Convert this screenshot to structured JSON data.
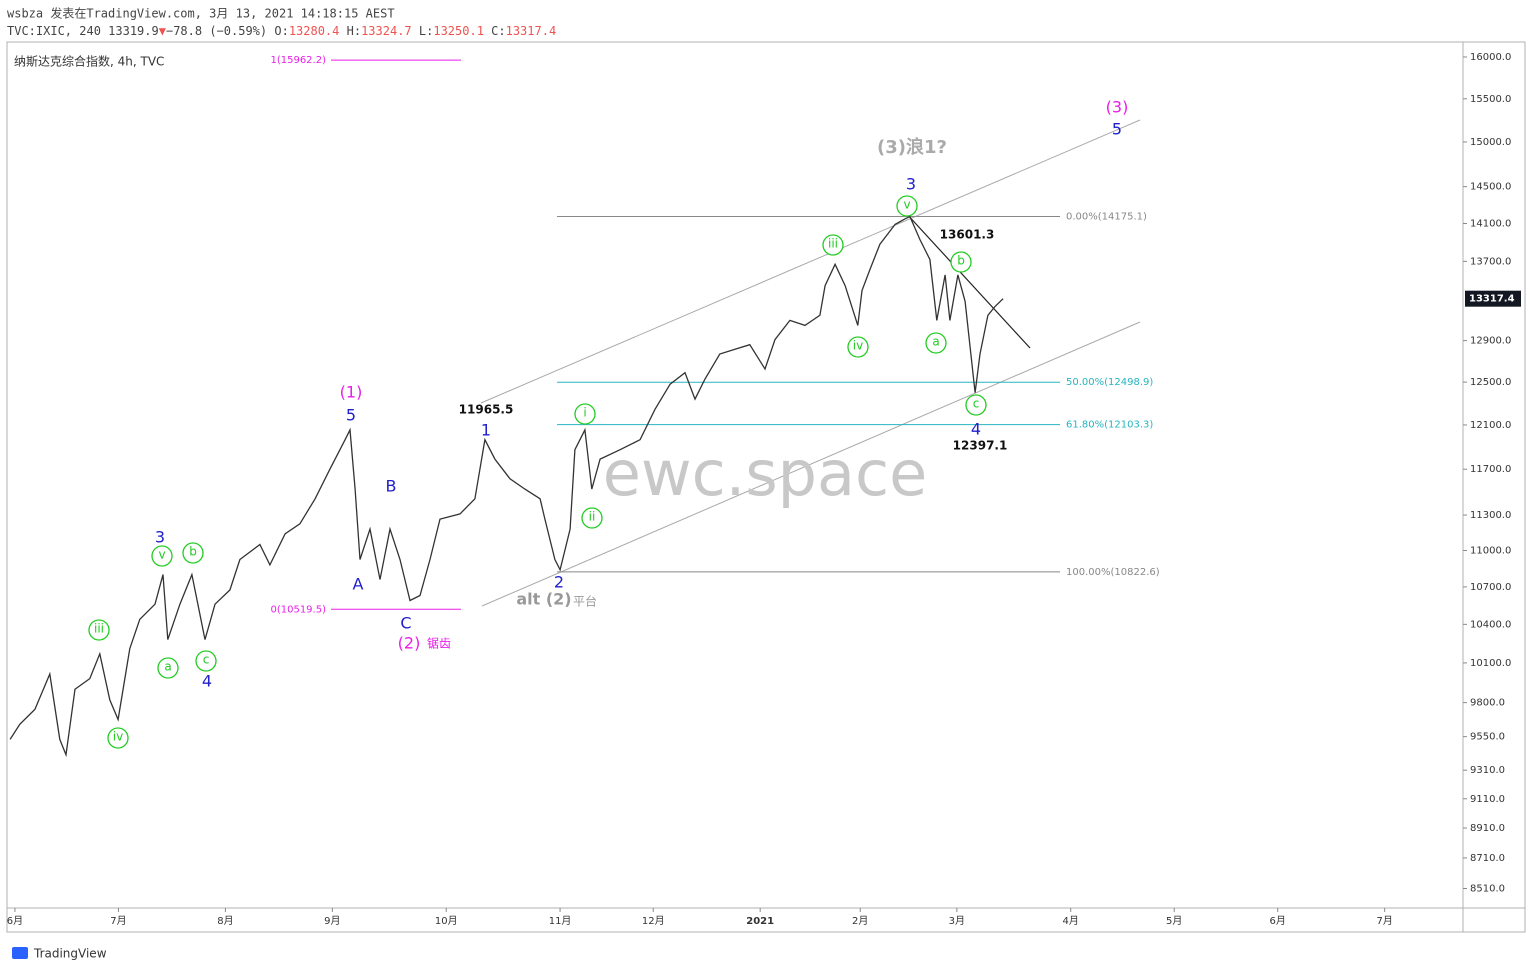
{
  "header": {
    "line1": "wsbza 发表在TradingView.com, 3月 13, 2021 14:18:15 AEST",
    "symbol": "TVC:IXIC, 240",
    "price": 13319.9,
    "arrow": "▼",
    "change": "−78.8 (−0.59%)",
    "ohlc": [
      {
        "key": "O:",
        "value": 13280.4
      },
      {
        "key": "H:",
        "value": 13324.7
      },
      {
        "key": "L:",
        "value": 13250.1
      },
      {
        "key": "C:",
        "value": 13317.4
      }
    ],
    "legend": "纳斯达克综合指数, 4h, TVC"
  },
  "chart_data": {
    "type": "line",
    "log_scale": true,
    "color": "#333333",
    "x": [
      -1.4,
      1.4,
      5.8,
      10.1,
      13.0,
      14.8,
      17.4,
      21.7,
      24.6,
      27.5,
      29.9,
      33.3,
      36.2,
      40.6,
      42.9,
      44.3,
      47.8,
      51.3,
      55.1,
      58.0,
      62.3,
      65.2,
      71.0,
      73.9,
      78.3,
      82.6,
      87.0,
      91.3,
      95.7,
      97.1,
      98.6,
      100.0,
      102.9,
      105.8,
      108.7,
      111.6,
      114.5,
      117.4,
      120.3,
      123.2,
      129.0,
      133.3,
      136.2,
      139.1,
      143.5,
      147.8,
      152.2,
      153.6,
      156.5,
      158.0,
      160.9,
      162.3,
      165.2,
      167.2,
      169.6,
      175.4,
      181.2,
      185.5,
      189.9,
      194.2,
      197.1,
      200.0,
      204.3,
      208.7,
      213.0,
      217.4,
      220.3,
      224.6,
      229.0,
      233.3,
      234.8,
      237.7,
      240.6,
      244.3,
      245.5,
      247.8,
      250.7,
      255.1,
      258.0,
      259.4,
      262.3,
      265.2,
      267.2,
      269.6,
      271.0,
      273.3,
      275.4,
      278.3,
      279.7,
      282.0,
      284.1,
      286.4
    ],
    "values": [
      9530,
      9640,
      9750,
      10015,
      9530,
      9420,
      9900,
      9980,
      10170,
      9820,
      9675,
      10210,
      10440,
      10560,
      10800,
      10280,
      10560,
      10800,
      10280,
      10560,
      10675,
      10925,
      11050,
      10880,
      11140,
      11225,
      11440,
      11700,
      11965,
      12055,
      11525,
      10925,
      11180,
      10760,
      11180,
      10925,
      10590,
      10630,
      10925,
      11265,
      11310,
      11440,
      11965,
      11790,
      11615,
      11525,
      11440,
      11265,
      10925,
      10840,
      11180,
      11875,
      12055,
      11525,
      11790,
      11875,
      11965,
      12245,
      12480,
      12590,
      12340,
      12530,
      12770,
      12815,
      12860,
      12625,
      12910,
      13100,
      13050,
      13150,
      13450,
      13670,
      13450,
      13050,
      13400,
      13615,
      13880,
      14090,
      14150,
      14175,
      13930,
      13720,
      13100,
      13560,
      13100,
      13560,
      13290,
      12400,
      12770,
      13150,
      13240,
      13317.4
    ],
    "xlim": [
      -2.3,
      419.7
    ],
    "xticks": [
      {
        "value": 0,
        "label": "6月"
      },
      {
        "value": 30,
        "label": "7月"
      },
      {
        "value": 61,
        "label": "8月"
      },
      {
        "value": 92,
        "label": "9月"
      },
      {
        "value": 125,
        "label": "10月"
      },
      {
        "value": 158,
        "label": "11月"
      },
      {
        "value": 185,
        "label": "12月"
      },
      {
        "value": 216,
        "label": "2021"
      },
      {
        "value": 245,
        "label": "2月"
      },
      {
        "value": 273,
        "label": "3月"
      },
      {
        "value": 306,
        "label": "4月"
      },
      {
        "value": 336,
        "label": "5月"
      },
      {
        "value": 366,
        "label": "6月"
      },
      {
        "value": 397,
        "label": "7月"
      }
    ],
    "ylim": [
      8385,
      16183
    ],
    "yticks": [
      {
        "value": 16000,
        "label": "16000.0"
      },
      {
        "value": 15500,
        "label": "15500.0"
      },
      {
        "value": 15000,
        "label": "15000.0"
      },
      {
        "value": 14500,
        "label": "14500.0"
      },
      {
        "value": 14100,
        "label": "14100.0"
      },
      {
        "value": 13700,
        "label": "13700.0"
      },
      {
        "value": 12900,
        "label": "12900.0"
      },
      {
        "value": 12500,
        "label": "12500.0"
      },
      {
        "value": 12100,
        "label": "12100.0"
      },
      {
        "value": 11700,
        "label": "11700.0"
      },
      {
        "value": 11300,
        "label": "11300.0"
      },
      {
        "value": 11000,
        "label": "11000.0"
      },
      {
        "value": 10700,
        "label": "10700.0"
      },
      {
        "value": 10400,
        "label": "10400.0"
      },
      {
        "value": 10100,
        "label": "10100.0"
      },
      {
        "value": 9800,
        "label": "9800.0"
      },
      {
        "value": 9550,
        "label": "9550.0"
      },
      {
        "value": 9310,
        "label": "9310.0"
      },
      {
        "value": 9110,
        "label": "9110.0"
      },
      {
        "value": 8910,
        "label": "8910.0"
      },
      {
        "value": 8710,
        "label": "8710.0"
      },
      {
        "value": 8510,
        "label": "8510.0"
      }
    ],
    "last_price": {
      "value": 13317.4,
      "label": "13317.4"
    },
    "levels": [
      {
        "label": "0.00%(14175.1)",
        "value": 14175.1,
        "color": "#888888"
      },
      {
        "label": "50.00%(12498.9)",
        "value": 12498.9,
        "color": "#26b5c0"
      },
      {
        "label": "61.80%(12103.3)",
        "value": 12103.3,
        "color": "#26b5c0"
      },
      {
        "label": "100.00%(10822.6)",
        "value": 10822.6,
        "color": "#888888"
      },
      {
        "label": "1(15962.2)",
        "value": 15962.2,
        "color": "#e91ee9"
      },
      {
        "label": "0(10519.5)",
        "value": 10519.5,
        "color": "#e91ee9"
      }
    ],
    "annotations": [
      {
        "text": "(3)浪1?",
        "style": "note",
        "color": "#aaaaaa"
      },
      {
        "text": "(3)",
        "style": "wave",
        "color": "#e91ee9"
      },
      {
        "text": "5",
        "style": "wave",
        "color": "#2020cc"
      },
      {
        "text": "3",
        "style": "wave",
        "color": "#2020cc"
      },
      {
        "text": "v",
        "style": "circle",
        "color": "#22cc22"
      },
      {
        "text": "13601.3",
        "style": "price",
        "color": "#111111"
      },
      {
        "text": "b",
        "style": "circle",
        "color": "#22cc22"
      },
      {
        "text": "iii",
        "style": "circle",
        "color": "#22cc22"
      },
      {
        "text": "iv",
        "style": "circle",
        "color": "#22cc22"
      },
      {
        "text": "a",
        "style": "circle",
        "color": "#22cc22"
      },
      {
        "text": "c",
        "style": "circle",
        "color": "#22cc22"
      },
      {
        "text": "4",
        "style": "wave",
        "color": "#2020cc"
      },
      {
        "text": "12397.1",
        "style": "price",
        "color": "#111111"
      },
      {
        "text": "11965.5",
        "style": "price",
        "color": "#111111"
      },
      {
        "text": "1",
        "style": "wave",
        "color": "#2020cc"
      },
      {
        "text": "i",
        "style": "circle",
        "color": "#22cc22"
      },
      {
        "text": "ii",
        "style": "circle",
        "color": "#22cc22"
      },
      {
        "text": "2",
        "style": "wave",
        "color": "#2020cc"
      },
      {
        "text": "alt (2)",
        "style": "note-small",
        "color": "#999999"
      },
      {
        "text": "平台",
        "style": "small",
        "color": "#999999"
      },
      {
        "text": "(1)",
        "style": "wave",
        "color": "#e91ee9"
      },
      {
        "text": "5",
        "style": "wave",
        "color": "#2020cc"
      },
      {
        "text": "B",
        "style": "wave",
        "color": "#2020cc"
      },
      {
        "text": "A",
        "style": "wave",
        "color": "#2020cc"
      },
      {
        "text": "C",
        "style": "wave",
        "color": "#2020cc"
      },
      {
        "text": "(2)",
        "style": "wave",
        "color": "#e91ee9"
      },
      {
        "text": "锯齿",
        "style": "small",
        "color": "#e91ee9"
      },
      {
        "text": "3",
        "style": "wave",
        "color": "#2020cc"
      },
      {
        "text": "v",
        "style": "circle",
        "color": "#22cc22"
      },
      {
        "text": "b",
        "style": "circle",
        "color": "#22cc22"
      },
      {
        "text": "iii",
        "style": "circle",
        "color": "#22cc22"
      },
      {
        "text": "a",
        "style": "circle",
        "color": "#22cc22"
      },
      {
        "text": "c",
        "style": "circle",
        "color": "#22cc22"
      },
      {
        "text": "4",
        "style": "wave",
        "color": "#2020cc"
      },
      {
        "text": "iv",
        "style": "circle",
        "color": "#22cc22"
      }
    ],
    "watermark": "ewc.space"
  },
  "footer": "TradingView"
}
